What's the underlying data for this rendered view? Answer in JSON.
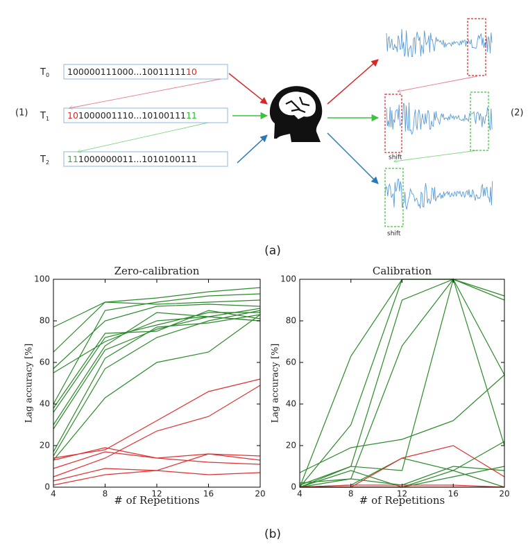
{
  "panel_a": {
    "label": "(a)",
    "left_label": "(1)",
    "right_label": "(2)",
    "shift_labels": [
      "shift",
      "shift"
    ],
    "trials": [
      {
        "name": "T",
        "sub": "0",
        "segments": [
          {
            "text": "100000111000...10011111",
            "color": "#222222"
          },
          {
            "text": "10",
            "color": "#e0262a"
          }
        ]
      },
      {
        "name": "T",
        "sub": "1",
        "segments": [
          {
            "text": "10",
            "color": "#e0262a"
          },
          {
            "text": "1000001110...10100111",
            "color": "#222222"
          },
          {
            "text": "11",
            "color": "#2db52d"
          }
        ]
      },
      {
        "name": "T",
        "sub": "2",
        "segments": [
          {
            "text": "11",
            "color": "#2db52d"
          },
          {
            "text": "1000000011...1010100111",
            "color": "#222222"
          }
        ]
      }
    ]
  },
  "panel_b": {
    "label": "(b)"
  },
  "chart_data": [
    {
      "type": "line",
      "title": "Zero-calibration",
      "xlabel": "# of Repetitions",
      "ylabel": "Lag accuracy [%]",
      "x": [
        4,
        8,
        12,
        16,
        20
      ],
      "xlim": [
        4,
        20
      ],
      "xticks": [
        4,
        8,
        12,
        16,
        20
      ],
      "ylim": [
        0,
        100
      ],
      "yticks": [
        0,
        20,
        40,
        60,
        80,
        100
      ],
      "series": [
        {
          "color": "#2a8a2a",
          "values": [
            77,
            89,
            88,
            89,
            90
          ]
        },
        {
          "color": "#2a8a2a",
          "values": [
            65,
            89,
            91,
            94,
            96
          ]
        },
        {
          "color": "#2a8a2a",
          "values": [
            57,
            80,
            87,
            88,
            87
          ]
        },
        {
          "color": "#2a8a2a",
          "values": [
            40,
            85,
            89,
            92,
            93
          ]
        },
        {
          "color": "#2a8a2a",
          "values": [
            38,
            74,
            75,
            85,
            81
          ]
        },
        {
          "color": "#2a8a2a",
          "values": [
            36,
            72,
            78,
            84,
            84
          ]
        },
        {
          "color": "#2a8a2a",
          "values": [
            30,
            68,
            84,
            82,
            86
          ]
        },
        {
          "color": "#2a8a2a",
          "values": [
            28,
            66,
            76,
            82,
            80
          ]
        },
        {
          "color": "#2a8a2a",
          "values": [
            17,
            62,
            77,
            79,
            83
          ]
        },
        {
          "color": "#2a8a2a",
          "values": [
            15,
            57,
            72,
            80,
            85
          ]
        },
        {
          "color": "#2a8a2a",
          "values": [
            13,
            43,
            60,
            65,
            83
          ]
        },
        {
          "color": "#2a8a2a",
          "values": [
            55,
            70,
            80,
            82,
            80
          ]
        },
        {
          "color": "#e03030",
          "values": [
            14,
            18,
            32,
            46,
            52
          ]
        },
        {
          "color": "#e03030",
          "values": [
            5,
            14,
            27,
            34,
            49
          ]
        },
        {
          "color": "#e03030",
          "values": [
            13,
            19,
            14,
            16,
            15
          ]
        },
        {
          "color": "#e03030",
          "values": [
            9,
            17,
            14,
            12,
            11
          ]
        },
        {
          "color": "#e03030",
          "values": [
            3,
            9,
            8,
            16,
            13
          ]
        },
        {
          "color": "#e03030",
          "values": [
            1,
            6,
            8,
            6,
            7
          ]
        }
      ]
    },
    {
      "type": "line",
      "title": "Calibration",
      "xlabel": "# of Repetitions",
      "ylabel": "Lag accuracy [%]",
      "x": [
        4,
        8,
        12,
        16,
        20
      ],
      "xlim": [
        4,
        20
      ],
      "xticks": [
        4,
        8,
        12,
        16,
        20
      ],
      "ylim": [
        0,
        100
      ],
      "yticks": [
        0,
        20,
        40,
        60,
        80,
        100
      ],
      "series": [
        {
          "color": "#2a8a2a",
          "values": [
            0,
            63,
            100,
            100,
            92
          ]
        },
        {
          "color": "#2a8a2a",
          "values": [
            0,
            30,
            100,
            100,
            90
          ]
        },
        {
          "color": "#2a8a2a",
          "values": [
            0,
            10,
            90,
            100,
            90
          ]
        },
        {
          "color": "#2a8a2a",
          "values": [
            0,
            4,
            68,
            100,
            54
          ]
        },
        {
          "color": "#2a8a2a",
          "values": [
            1,
            10,
            8,
            100,
            20
          ]
        },
        {
          "color": "#2a8a2a",
          "values": [
            7,
            19,
            23,
            32,
            54
          ]
        },
        {
          "color": "#2a8a2a",
          "values": [
            0,
            1,
            14,
            8,
            0
          ]
        },
        {
          "color": "#2a8a2a",
          "values": [
            2,
            4,
            1,
            10,
            8
          ]
        },
        {
          "color": "#2a8a2a",
          "values": [
            0,
            0,
            0,
            8,
            22
          ]
        },
        {
          "color": "#2a8a2a",
          "values": [
            0,
            8,
            0,
            5,
            10
          ]
        },
        {
          "color": "#e03030",
          "values": [
            0,
            0,
            14,
            20,
            5
          ]
        },
        {
          "color": "#e03030",
          "values": [
            0,
            1,
            1,
            1,
            0
          ]
        },
        {
          "color": "#e03030",
          "values": [
            0,
            0,
            0,
            0,
            0
          ]
        }
      ]
    }
  ]
}
